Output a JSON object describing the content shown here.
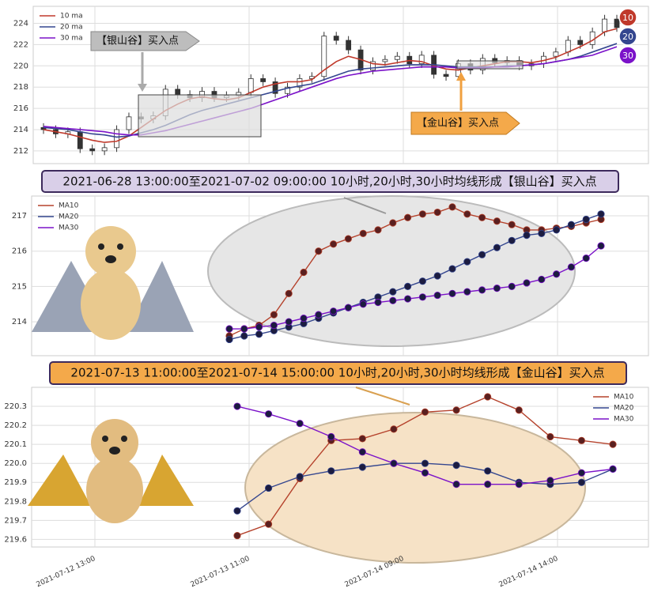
{
  "chart_data": [
    {
      "type": "candlestick",
      "candles": {
        "open": [
          214.2,
          214.0,
          213.6,
          213.8,
          212.2,
          212.0,
          212.3,
          214.0,
          215.2,
          215.0,
          215.3,
          217.8,
          217.3,
          217.0,
          217.6,
          217.0,
          217.2,
          217.5,
          218.8,
          218.5,
          217.4,
          218.0,
          218.8,
          219.0,
          222.8,
          222.4,
          221.5,
          219.6,
          220.4,
          220.6,
          220.9,
          220.2,
          221.0,
          219.2,
          219.0,
          220.2,
          219.6,
          220.7,
          220.3,
          220.5,
          220.0,
          220.2,
          220.9,
          221.3,
          222.4,
          222.0,
          223.2,
          224.4
        ],
        "high": [
          214.6,
          214.4,
          214.2,
          214.2,
          212.6,
          212.7,
          214.4,
          215.6,
          215.6,
          215.7,
          218.2,
          218.2,
          217.7,
          218.0,
          218.0,
          217.6,
          217.9,
          219.2,
          219.2,
          218.9,
          218.4,
          219.2,
          219.4,
          223.2,
          223.2,
          222.8,
          221.9,
          220.8,
          221.0,
          221.3,
          221.3,
          221.4,
          221.4,
          219.6,
          220.6,
          220.6,
          221.1,
          221.1,
          220.9,
          220.9,
          220.6,
          221.3,
          221.7,
          222.8,
          222.8,
          223.6,
          224.8,
          224.8
        ],
        "low": [
          213.6,
          213.2,
          213.2,
          211.8,
          211.6,
          211.6,
          211.9,
          213.6,
          214.6,
          214.6,
          214.9,
          216.9,
          216.6,
          216.6,
          216.6,
          216.6,
          216.8,
          217.1,
          218.1,
          217.0,
          217.0,
          217.6,
          218.4,
          218.6,
          222.0,
          221.1,
          219.2,
          219.2,
          220.0,
          220.2,
          219.8,
          219.8,
          218.8,
          218.6,
          218.6,
          219.2,
          219.2,
          219.9,
          219.9,
          219.6,
          219.6,
          219.8,
          220.5,
          220.9,
          221.6,
          221.6,
          222.8,
          223.2
        ],
        "close": [
          214.0,
          213.6,
          213.8,
          212.2,
          212.0,
          212.3,
          214.0,
          215.2,
          215.0,
          215.3,
          217.8,
          217.3,
          217.0,
          217.6,
          217.0,
          217.2,
          217.5,
          218.8,
          218.5,
          217.4,
          218.0,
          218.8,
          219.0,
          222.8,
          222.4,
          221.5,
          219.6,
          220.4,
          220.6,
          220.9,
          220.2,
          221.0,
          219.2,
          219.0,
          220.2,
          219.6,
          220.7,
          220.3,
          220.5,
          220.0,
          220.2,
          220.9,
          221.3,
          222.4,
          222.0,
          223.2,
          224.4,
          223.6
        ]
      },
      "series": [
        {
          "name": "10 ma",
          "color": "#c0392b",
          "values": [
            214.0,
            213.8,
            213.6,
            213.3,
            213.0,
            212.8,
            212.9,
            213.4,
            214.2,
            215.0,
            215.8,
            216.4,
            216.9,
            217.1,
            216.9,
            216.8,
            217.0,
            217.5,
            218.0,
            218.3,
            218.5,
            218.5,
            218.7,
            219.6,
            220.4,
            220.9,
            220.6,
            220.2,
            220.1,
            220.3,
            220.5,
            220.4,
            220.0,
            219.7,
            219.6,
            219.8,
            220.0,
            220.2,
            220.4,
            220.4,
            220.3,
            220.5,
            220.8,
            221.3,
            221.8,
            222.4,
            223.2,
            223.5
          ]
        },
        {
          "name": "20 ma",
          "color": "#34468f",
          "values": [
            214.2,
            214.1,
            214.0,
            213.8,
            213.6,
            213.5,
            213.3,
            213.4,
            213.7,
            214.0,
            214.4,
            214.9,
            215.4,
            215.8,
            216.1,
            216.4,
            216.7,
            217.0,
            217.3,
            217.6,
            217.9,
            218.1,
            218.3,
            218.7,
            219.1,
            219.5,
            219.7,
            219.8,
            219.9,
            220.0,
            220.1,
            220.1,
            220.1,
            220.0,
            219.9,
            219.9,
            219.9,
            219.9,
            220.0,
            220.0,
            220.1,
            220.2,
            220.4,
            220.6,
            220.9,
            221.3,
            221.7,
            222.1
          ]
        },
        {
          "name": "30 ma",
          "color": "#7b12c9",
          "values": [
            214.3,
            214.2,
            214.1,
            214.0,
            213.9,
            213.8,
            213.6,
            213.5,
            213.5,
            213.7,
            213.9,
            214.2,
            214.5,
            214.8,
            215.1,
            215.4,
            215.7,
            216.0,
            216.4,
            216.8,
            217.2,
            217.6,
            218.0,
            218.4,
            218.8,
            219.1,
            219.3,
            219.5,
            219.6,
            219.7,
            219.8,
            219.9,
            219.9,
            219.9,
            219.8,
            219.8,
            219.8,
            219.9,
            219.9,
            220.0,
            220.1,
            220.2,
            220.4,
            220.6,
            220.8,
            221.0,
            221.4,
            221.8
          ]
        }
      ],
      "annotations": [
        "【银山谷】买入点",
        "【金山谷】买入点"
      ],
      "badges": [
        "10",
        "20",
        "30"
      ],
      "ylim": [
        210.8,
        225.6
      ],
      "yticks": [
        212,
        214,
        216,
        218,
        220,
        222,
        224
      ],
      "grid": true,
      "legend": "upper left"
    },
    {
      "type": "line",
      "title": "2021-06-28 13:00:00至2021-07-02 09:00:00 10小时,20小时,30小时均线形成【银山谷】买入点",
      "series": [
        {
          "name": "MA10",
          "color": "#b5422c",
          "values": [
            213.6,
            213.8,
            213.9,
            214.2,
            214.8,
            215.4,
            216.0,
            216.2,
            216.35,
            216.5,
            216.6,
            216.8,
            216.95,
            217.05,
            217.1,
            217.25,
            217.05,
            216.95,
            216.85,
            216.75,
            216.6,
            216.6,
            216.65,
            216.7,
            216.8,
            216.9
          ]
        },
        {
          "name": "MA20",
          "color": "#34468f",
          "values": [
            213.5,
            213.6,
            213.65,
            213.75,
            213.85,
            213.95,
            214.1,
            214.25,
            214.4,
            214.55,
            214.7,
            214.85,
            215.0,
            215.15,
            215.3,
            215.5,
            215.7,
            215.9,
            216.1,
            216.3,
            216.45,
            216.5,
            216.6,
            216.75,
            216.9,
            217.05
          ]
        },
        {
          "name": "MA30",
          "color": "#7b12c9",
          "values": [
            213.8,
            213.8,
            213.85,
            213.9,
            214.0,
            214.1,
            214.2,
            214.3,
            214.4,
            214.5,
            214.55,
            214.6,
            214.65,
            214.7,
            214.75,
            214.8,
            214.85,
            214.9,
            214.95,
            215.0,
            215.1,
            215.2,
            215.35,
            215.55,
            215.8,
            216.15
          ]
        }
      ],
      "ylim": [
        213.04,
        217.56
      ],
      "yticks": [
        214,
        215,
        216,
        217
      ],
      "grid": true,
      "legend": "upper left"
    },
    {
      "type": "line",
      "title": "2021-07-13 11:00:00至2021-07-14 15:00:00 10小时,20小时,30小时均线形成【金山谷】买入点",
      "series": [
        {
          "name": "MA10",
          "color": "#b5422c",
          "values": [
            219.62,
            219.68,
            219.92,
            220.12,
            220.13,
            220.18,
            220.27,
            220.28,
            220.35,
            220.28,
            220.14,
            220.12,
            220.1
          ]
        },
        {
          "name": "MA20",
          "color": "#34468f",
          "values": [
            219.75,
            219.87,
            219.93,
            219.96,
            219.98,
            220.0,
            220.0,
            219.99,
            219.96,
            219.9,
            219.89,
            219.9,
            219.97
          ]
        },
        {
          "name": "MA30",
          "color": "#7b12c9",
          "values": [
            220.3,
            220.26,
            220.21,
            220.14,
            220.06,
            220.0,
            219.95,
            219.89,
            219.89,
            219.89,
            219.91,
            219.95,
            219.97
          ]
        }
      ],
      "xtick_labels": [
        "2021-07-12 13:00",
        "2021-07-13 11:00",
        "2021-07-14 09:00",
        "2021-07-14 14:00"
      ],
      "ylim": [
        219.56,
        220.4
      ],
      "yticks": [
        219.6,
        219.7,
        219.8,
        219.9,
        {
          "value": 220,
          "label": "220.0"
        },
        220.1,
        220.2,
        220.3
      ],
      "grid": true,
      "legend": "upper right"
    }
  ]
}
